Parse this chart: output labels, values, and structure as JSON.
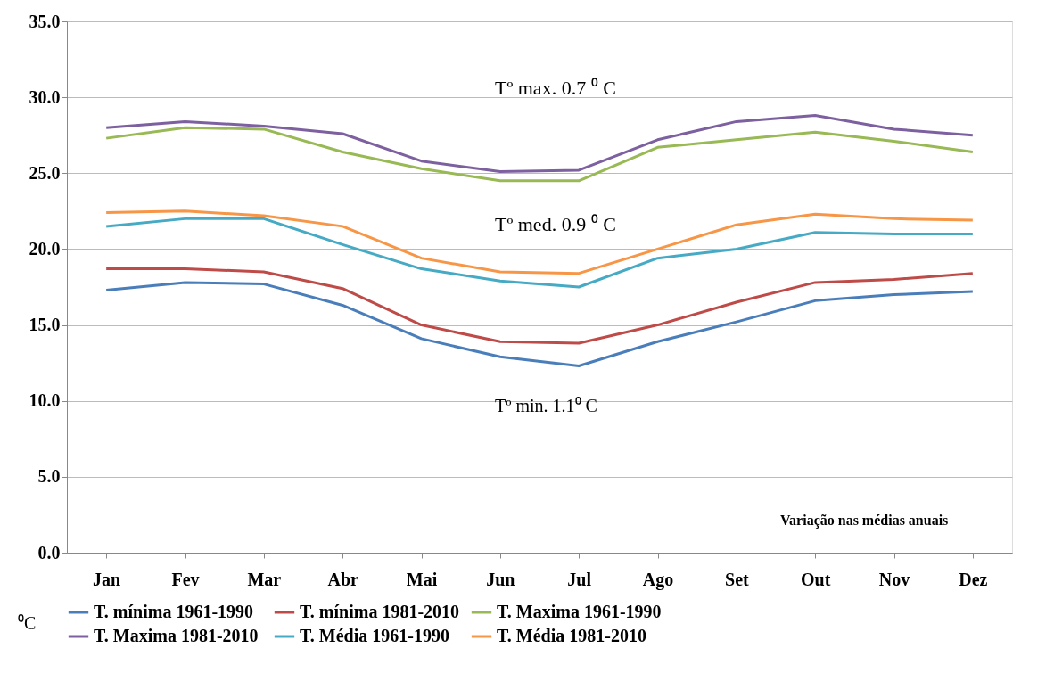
{
  "chart_data": {
    "type": "line",
    "ylabel": "⁰C",
    "categories": [
      "Jan",
      "Fev",
      "Mar",
      "Abr",
      "Mai",
      "Jun",
      "Jul",
      "Ago",
      "Set",
      "Out",
      "Nov",
      "Dez"
    ],
    "series": [
      {
        "name": "T. mínima 1961-1990",
        "color": "#4a7ebb",
        "values": [
          17.3,
          17.8,
          17.7,
          16.3,
          14.1,
          12.9,
          12.3,
          13.9,
          15.2,
          16.6,
          17.0,
          17.2
        ]
      },
      {
        "name": "T. mínima 1981-2010",
        "color": "#be4b48",
        "values": [
          18.7,
          18.7,
          18.5,
          17.4,
          15.0,
          13.9,
          13.8,
          15.0,
          16.5,
          17.8,
          18.0,
          18.4
        ]
      },
      {
        "name": "T. Maxima  1961-1990",
        "color": "#98b954",
        "values": [
          27.3,
          28.0,
          27.9,
          26.4,
          25.3,
          24.5,
          24.5,
          26.7,
          27.2,
          27.7,
          27.1,
          26.4
        ]
      },
      {
        "name": "T. Maxima  1981-2010",
        "color": "#7d60a0",
        "values": [
          28.0,
          28.4,
          28.1,
          27.6,
          25.8,
          25.1,
          25.2,
          27.2,
          28.4,
          28.8,
          27.9,
          27.5
        ]
      },
      {
        "name": "T. Média  1961-1990",
        "color": "#46aac5",
        "values": [
          21.5,
          22.0,
          22.0,
          20.3,
          18.7,
          17.9,
          17.5,
          19.4,
          20.0,
          21.1,
          21.0,
          21.0
        ]
      },
      {
        "name": "T. Média  1981-2010",
        "color": "#f79646",
        "values": [
          22.4,
          22.5,
          22.2,
          21.5,
          19.4,
          18.5,
          18.4,
          20.0,
          21.6,
          22.3,
          22.0,
          21.9
        ]
      }
    ],
    "ylim": [
      0,
      35
    ],
    "yticks": [
      {
        "value": 0,
        "label": "0.0"
      },
      {
        "value": 5,
        "label": "5.0"
      },
      {
        "value": 10,
        "label": "10.0"
      },
      {
        "value": 15,
        "label": "15.0"
      },
      {
        "value": 20,
        "label": "20.0"
      },
      {
        "value": 25,
        "label": "25.0"
      },
      {
        "value": 30,
        "label": "30.0"
      },
      {
        "value": 35,
        "label": "35.0"
      }
    ],
    "grid": "y",
    "legend": "bottom",
    "marker": "none",
    "line_style": "solid",
    "annotations": [
      "Tº max. 0.7 ⁰ C",
      "Tº med. 0.9 ⁰ C",
      "Tº min. 1.1⁰ C",
      "Variação nas médias anuais"
    ]
  }
}
